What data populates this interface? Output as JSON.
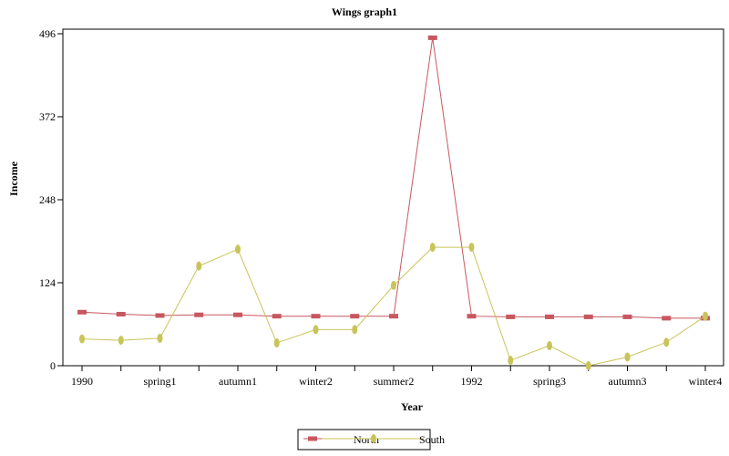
{
  "chart_data": {
    "type": "line",
    "title": "Wings graph1",
    "xlabel": "Year",
    "ylabel": "Income",
    "x": [
      "1990",
      "",
      "spring1",
      "",
      "autumn1",
      "",
      "winter2",
      "",
      "summer2",
      "",
      "1992",
      "",
      "spring3",
      "",
      "autumn3",
      "",
      "winter4"
    ],
    "x_tick_labels": [
      "1990",
      "spring1",
      "autumn1",
      "winter2",
      "summer2",
      "1992",
      "spring3",
      "autumn3",
      "winter4"
    ],
    "y_ticks": [
      "0",
      "124",
      "248",
      "372",
      "496"
    ],
    "ylim": [
      0,
      496
    ],
    "grid": false,
    "legend": "bottom-center",
    "series": [
      {
        "name": "North",
        "color": "#c8575f",
        "marker": "square",
        "values": [
          80,
          77,
          75,
          76,
          76,
          74,
          74,
          74,
          74,
          490,
          74,
          73,
          73,
          73,
          73,
          71,
          71
        ]
      },
      {
        "name": "South",
        "color": "#c9c45a",
        "marker": "diamond",
        "values": [
          40,
          38,
          41,
          149,
          174,
          34,
          54,
          54,
          120,
          177,
          177,
          8,
          30,
          0,
          13,
          35,
          74
        ]
      }
    ]
  }
}
